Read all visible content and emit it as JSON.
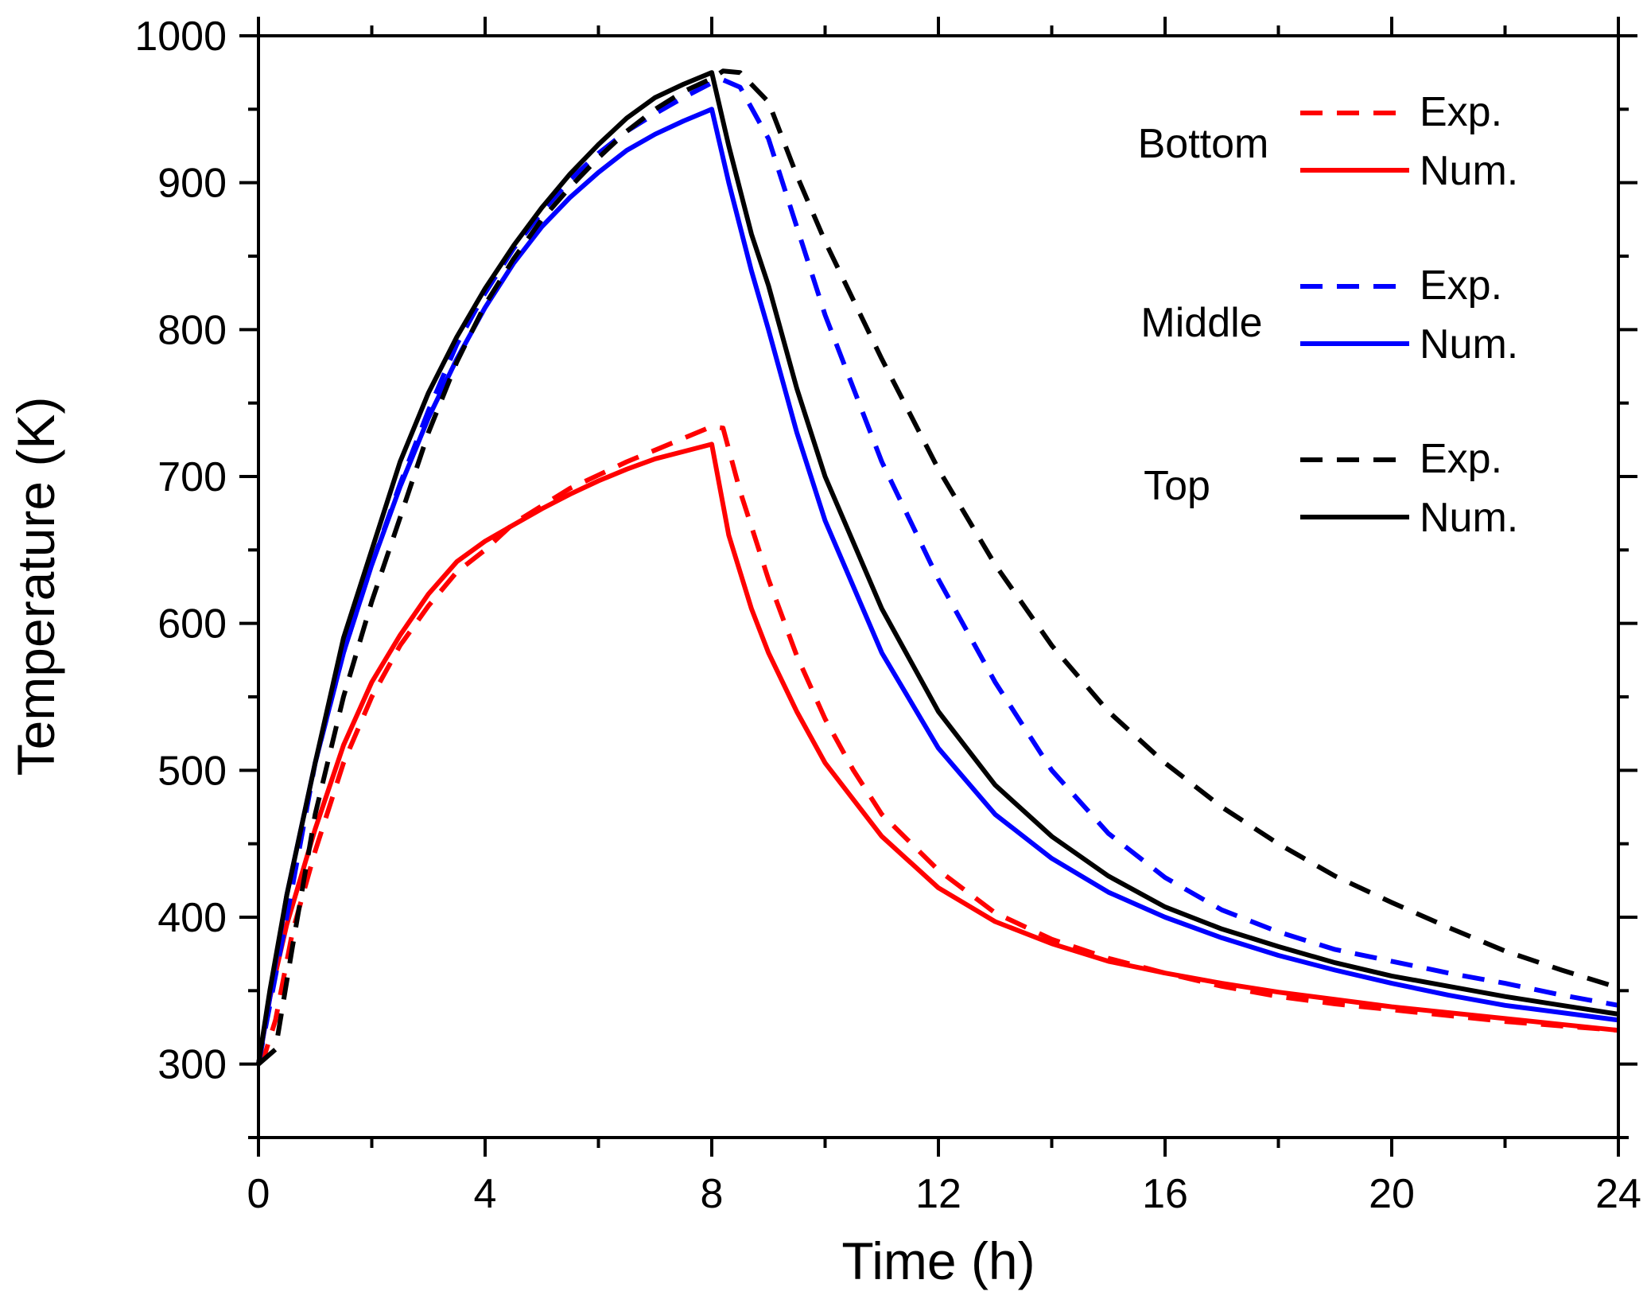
{
  "chart_data": {
    "type": "line",
    "title": "",
    "xlabel": "Time (h)",
    "ylabel": "Temperature (K)",
    "xlim": [
      0,
      24
    ],
    "ylim": [
      250,
      1000
    ],
    "xticks": [
      0,
      4,
      8,
      12,
      16,
      20,
      24
    ],
    "xtick_labels": [
      "0",
      "4",
      "8",
      "12",
      "16",
      "20",
      "24"
    ],
    "yticks": [
      300,
      400,
      500,
      600,
      700,
      800,
      900,
      1000
    ],
    "ytick_labels": [
      "300",
      "400",
      "500",
      "600",
      "700",
      "800",
      "900",
      "1000"
    ],
    "grid": false,
    "legend_position": "top-right",
    "legend": [
      {
        "group": "Bottom",
        "exp_label": "Exp.",
        "num_label": "Num.",
        "color": "#ff0000"
      },
      {
        "group": "Middle",
        "exp_label": "Exp.",
        "num_label": "Num.",
        "color": "#0000ff"
      },
      {
        "group": "Top",
        "exp_label": "Exp.",
        "num_label": "Num.",
        "color": "#000000"
      }
    ],
    "series": [
      {
        "name": "Bottom Exp.",
        "color": "#ff0000",
        "style": "dashed",
        "x": [
          0,
          0.1,
          0.3,
          0.6,
          1,
          1.5,
          2,
          2.5,
          3,
          3.5,
          4,
          4.5,
          5,
          5.5,
          6,
          6.5,
          7,
          7.5,
          8,
          8.2,
          8.5,
          9,
          9.5,
          10,
          10.5,
          11,
          12,
          13,
          14,
          15,
          16,
          17,
          18,
          19,
          20,
          21,
          22,
          23,
          24
        ],
        "y": [
          300,
          305,
          330,
          390,
          445,
          505,
          550,
          585,
          612,
          635,
          650,
          668,
          680,
          692,
          701,
          710,
          718,
          726,
          734,
          733,
          690,
          630,
          578,
          535,
          500,
          470,
          432,
          403,
          385,
          372,
          362,
          353,
          346,
          341,
          337,
          333,
          329,
          326,
          323
        ]
      },
      {
        "name": "Bottom Num.",
        "color": "#ff0000",
        "style": "solid",
        "x": [
          0,
          0.2,
          0.5,
          1,
          1.5,
          2,
          2.5,
          3,
          3.5,
          4,
          4.5,
          5,
          5.5,
          6,
          6.5,
          7,
          7.5,
          8,
          8.3,
          8.7,
          9,
          9.5,
          10,
          11,
          12,
          13,
          14,
          15,
          16,
          17,
          18,
          19,
          20,
          21,
          22,
          23,
          24
        ],
        "y": [
          300,
          345,
          395,
          460,
          517,
          560,
          592,
          620,
          642,
          656,
          667,
          678,
          688,
          697,
          705,
          712,
          717,
          722,
          660,
          610,
          580,
          540,
          505,
          455,
          420,
          397,
          382,
          370,
          362,
          355,
          349,
          344,
          339,
          335,
          331,
          327,
          323
        ]
      },
      {
        "name": "Middle Exp.",
        "color": "#0000ff",
        "style": "dashed",
        "x": [
          0,
          0.2,
          0.5,
          1,
          1.5,
          2,
          2.5,
          3,
          3.5,
          4,
          4.5,
          5,
          5.5,
          6,
          6.5,
          7,
          7.5,
          8,
          8.2,
          8.5,
          9,
          9.5,
          10,
          11,
          12,
          13,
          14,
          15,
          16,
          17,
          18,
          19,
          20,
          21,
          22,
          23,
          24
        ],
        "y": [
          300,
          340,
          400,
          505,
          580,
          640,
          695,
          745,
          790,
          825,
          855,
          880,
          902,
          920,
          935,
          947,
          958,
          968,
          970,
          965,
          930,
          870,
          810,
          710,
          630,
          560,
          500,
          457,
          427,
          405,
          390,
          378,
          370,
          362,
          355,
          347,
          340
        ]
      },
      {
        "name": "Middle Num.",
        "color": "#0000ff",
        "style": "solid",
        "x": [
          0,
          0.2,
          0.5,
          1,
          1.5,
          2,
          2.5,
          3,
          3.5,
          4,
          4.5,
          5,
          5.5,
          6,
          6.5,
          7,
          7.5,
          8,
          8.3,
          8.7,
          9,
          9.5,
          10,
          11,
          12,
          13,
          14,
          15,
          16,
          17,
          18,
          19,
          20,
          21,
          22,
          23,
          24
        ],
        "y": [
          300,
          345,
          415,
          505,
          580,
          640,
          693,
          740,
          780,
          815,
          845,
          870,
          890,
          907,
          922,
          933,
          942,
          950,
          900,
          840,
          800,
          730,
          670,
          580,
          515,
          470,
          440,
          417,
          400,
          386,
          374,
          364,
          355,
          347,
          340,
          335,
          330
        ]
      },
      {
        "name": "Top Exp.",
        "color": "#000000",
        "style": "dashed",
        "x": [
          0,
          0.3,
          0.6,
          1,
          1.5,
          2,
          2.5,
          3,
          3.5,
          4,
          4.5,
          5,
          5.5,
          6,
          6.5,
          7,
          7.5,
          8,
          8.2,
          8.5,
          9,
          9.5,
          10,
          11,
          12,
          13,
          14,
          15,
          16,
          17,
          18,
          19,
          20,
          21,
          22,
          23,
          24
        ],
        "y": [
          300,
          310,
          380,
          470,
          550,
          615,
          672,
          730,
          778,
          817,
          848,
          875,
          897,
          917,
          935,
          950,
          962,
          971,
          976,
          975,
          955,
          905,
          860,
          780,
          705,
          640,
          585,
          540,
          505,
          475,
          450,
          428,
          410,
          393,
          377,
          364,
          352
        ]
      },
      {
        "name": "Top Num.",
        "color": "#000000",
        "style": "solid",
        "x": [
          0,
          0.2,
          0.5,
          1,
          1.5,
          2,
          2.5,
          3,
          3.5,
          4,
          4.5,
          5,
          5.5,
          6,
          6.5,
          7,
          7.5,
          8,
          8.3,
          8.7,
          9,
          9.5,
          10,
          11,
          12,
          13,
          14,
          15,
          16,
          17,
          18,
          19,
          20,
          21,
          22,
          23,
          24
        ],
        "y": [
          300,
          350,
          415,
          505,
          590,
          650,
          710,
          757,
          795,
          828,
          857,
          883,
          906,
          926,
          944,
          958,
          967,
          975,
          925,
          865,
          830,
          760,
          700,
          610,
          540,
          490,
          455,
          428,
          407,
          392,
          380,
          369,
          360,
          353,
          346,
          340,
          334
        ]
      }
    ]
  }
}
